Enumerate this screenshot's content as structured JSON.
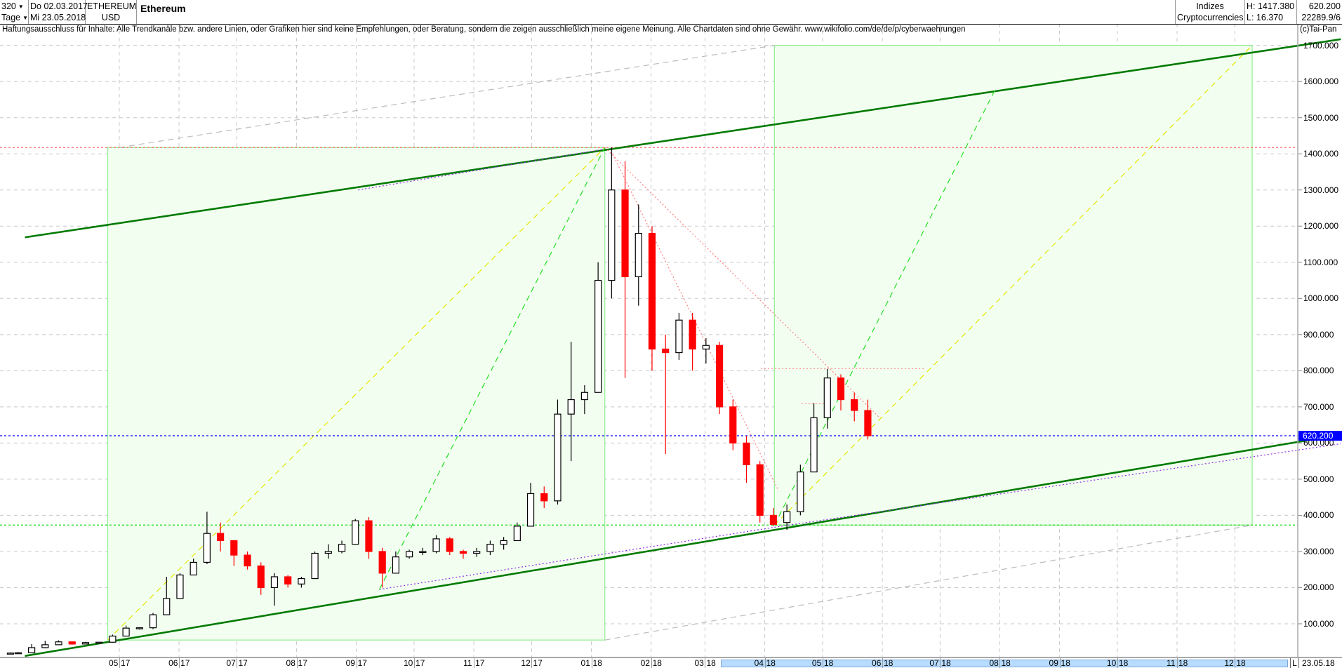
{
  "header": {
    "period": "320",
    "unit": "Tage",
    "date_from": "Do 02.03.2017",
    "date_to": "Mi 23.05.2018",
    "symbol": "ETHEREUM",
    "currency": "USD",
    "title": "Ethereum",
    "group": "Indizes",
    "subgroup": "Cryptocurrencies",
    "high": "H: 1417.380",
    "low": "L: 16.370",
    "last": "620.200",
    "extra": "22289.9/6"
  },
  "disclaimer": "Haftungsausschluss für Inhalte: Alle Trendkanäle bzw. andere Linien, oder Grafiken hier sind keine Empfehlungen, oder Beratung, sondern die zeigen ausschließlich meine eigene Meinung. Alle Chartdaten sind ohne Gewähr.  www.wikifolio.com/de/de/p/cyberwaehrungen",
  "copyright": "(c)Tai-Pan",
  "date_axis": {
    "mode_label": "L",
    "last_date": "23.05.18"
  },
  "colors": {
    "up": "#ffffff",
    "down": "#ff0000",
    "channel": "#007a00",
    "box_fill": "#f2fff0",
    "box_edge": "#90ee90",
    "current": "#0000ff"
  },
  "chart_data": {
    "type": "candlestick",
    "interval": "weekly (approximated from daily chart)",
    "ylim": [
      0,
      1750
    ],
    "y_ticks": [
      "100.000",
      "200.000",
      "300.000",
      "400.000",
      "500.000",
      "600.000",
      "700.000",
      "800.000",
      "900.000",
      "1000.000",
      "1100.000",
      "1200.000",
      "1300.000",
      "1400.000",
      "1500.000",
      "1600.000",
      "1700.000"
    ],
    "y_tick_values": [
      100,
      200,
      300,
      400,
      500,
      600,
      700,
      800,
      900,
      1000,
      1100,
      1200,
      1300,
      1400,
      1500,
      1600,
      1700
    ],
    "x_ticks": [
      {
        "date": "2017-05-01",
        "m": "05",
        "y": "17"
      },
      {
        "date": "2017-06-01",
        "m": "06",
        "y": "17"
      },
      {
        "date": "2017-07-01",
        "m": "07",
        "y": "17"
      },
      {
        "date": "2017-08-01",
        "m": "08",
        "y": "17"
      },
      {
        "date": "2017-09-01",
        "m": "09",
        "y": "17"
      },
      {
        "date": "2017-10-01",
        "m": "10",
        "y": "17"
      },
      {
        "date": "2017-11-01",
        "m": "11",
        "y": "17"
      },
      {
        "date": "2017-12-01",
        "m": "12",
        "y": "17"
      },
      {
        "date": "2018-01-01",
        "m": "01",
        "y": "18"
      },
      {
        "date": "2018-02-01",
        "m": "02",
        "y": "18"
      },
      {
        "date": "2018-03-01",
        "m": "03",
        "y": "18"
      },
      {
        "date": "2018-04-01",
        "m": "04",
        "y": "18"
      },
      {
        "date": "2018-05-01",
        "m": "05",
        "y": "18"
      },
      {
        "date": "2018-06-01",
        "m": "06",
        "y": "18"
      },
      {
        "date": "2018-07-01",
        "m": "07",
        "y": "18"
      },
      {
        "date": "2018-08-01",
        "m": "08",
        "y": "18"
      },
      {
        "date": "2018-09-01",
        "m": "09",
        "y": "18"
      },
      {
        "date": "2018-10-01",
        "m": "10",
        "y": "18"
      },
      {
        "date": "2018-11-01",
        "m": "11",
        "y": "18"
      },
      {
        "date": "2018-12-01",
        "m": "12",
        "y": "18"
      }
    ],
    "current_value": 620.2,
    "current_label": "620.200",
    "candles": [
      [
        "2017-03-02",
        19,
        21,
        17,
        19
      ],
      [
        "2017-03-06",
        19,
        22,
        18,
        20
      ],
      [
        "2017-03-13",
        20,
        44,
        20,
        34
      ],
      [
        "2017-03-20",
        34,
        53,
        32,
        42
      ],
      [
        "2017-03-27",
        42,
        54,
        42,
        50
      ],
      [
        "2017-04-03",
        50,
        51,
        42,
        44
      ],
      [
        "2017-04-10",
        44,
        50,
        44,
        48
      ],
      [
        "2017-04-17",
        48,
        50,
        46,
        49
      ],
      [
        "2017-04-24",
        49,
        70,
        48,
        66
      ],
      [
        "2017-05-01",
        66,
        95,
        66,
        88
      ],
      [
        "2017-05-08",
        88,
        90,
        84,
        89
      ],
      [
        "2017-05-15",
        89,
        130,
        85,
        125
      ],
      [
        "2017-05-22",
        125,
        230,
        125,
        170
      ],
      [
        "2017-05-29",
        170,
        240,
        170,
        235
      ],
      [
        "2017-06-05",
        235,
        280,
        235,
        270
      ],
      [
        "2017-06-12",
        270,
        410,
        265,
        350
      ],
      [
        "2017-06-19",
        350,
        380,
        300,
        330
      ],
      [
        "2017-06-26",
        330,
        330,
        260,
        290
      ],
      [
        "2017-07-03",
        290,
        300,
        250,
        260
      ],
      [
        "2017-07-10",
        260,
        270,
        180,
        200
      ],
      [
        "2017-07-17",
        200,
        240,
        150,
        230
      ],
      [
        "2017-07-24",
        230,
        235,
        200,
        210
      ],
      [
        "2017-07-31",
        210,
        230,
        200,
        225
      ],
      [
        "2017-08-07",
        225,
        300,
        225,
        295
      ],
      [
        "2017-08-14",
        295,
        320,
        280,
        300
      ],
      [
        "2017-08-21",
        300,
        330,
        295,
        320
      ],
      [
        "2017-08-28",
        320,
        390,
        320,
        385
      ],
      [
        "2017-09-04",
        385,
        395,
        280,
        300
      ],
      [
        "2017-09-11",
        300,
        310,
        200,
        240
      ],
      [
        "2017-09-18",
        240,
        300,
        240,
        285
      ],
      [
        "2017-09-25",
        285,
        305,
        280,
        300
      ],
      [
        "2017-10-02",
        300,
        310,
        290,
        300
      ],
      [
        "2017-10-09",
        300,
        345,
        295,
        335
      ],
      [
        "2017-10-16",
        335,
        340,
        290,
        300
      ],
      [
        "2017-10-23",
        300,
        305,
        280,
        295
      ],
      [
        "2017-10-30",
        295,
        310,
        285,
        300
      ],
      [
        "2017-11-06",
        300,
        330,
        290,
        320
      ],
      [
        "2017-11-13",
        320,
        340,
        305,
        330
      ],
      [
        "2017-11-20",
        330,
        380,
        330,
        370
      ],
      [
        "2017-11-27",
        370,
        490,
        370,
        460
      ],
      [
        "2017-12-04",
        460,
        480,
        420,
        440
      ],
      [
        "2017-12-11",
        440,
        720,
        430,
        680
      ],
      [
        "2017-12-18",
        680,
        880,
        550,
        720
      ],
      [
        "2017-12-25",
        720,
        760,
        680,
        740
      ],
      [
        "2018-01-01",
        740,
        1100,
        740,
        1050
      ],
      [
        "2018-01-08",
        1050,
        1417.38,
        1000,
        1300
      ],
      [
        "2018-01-15",
        1300,
        1380,
        780,
        1060
      ],
      [
        "2018-01-22",
        1060,
        1260,
        980,
        1180
      ],
      [
        "2018-01-29",
        1180,
        1200,
        800,
        860
      ],
      [
        "2018-02-05",
        860,
        900,
        570,
        850
      ],
      [
        "2018-02-12",
        850,
        960,
        830,
        940
      ],
      [
        "2018-02-19",
        940,
        960,
        800,
        860
      ],
      [
        "2018-02-26",
        860,
        890,
        820,
        870
      ],
      [
        "2018-03-05",
        870,
        880,
        680,
        700
      ],
      [
        "2018-03-12",
        700,
        720,
        580,
        600
      ],
      [
        "2018-03-19",
        600,
        620,
        490,
        540
      ],
      [
        "2018-03-26",
        540,
        550,
        380,
        400
      ],
      [
        "2018-04-02",
        400,
        420,
        370,
        375
      ],
      [
        "2018-04-09",
        380,
        430,
        360,
        410
      ],
      [
        "2018-04-16",
        410,
        540,
        400,
        520
      ],
      [
        "2018-04-23",
        520,
        710,
        520,
        670
      ],
      [
        "2018-04-30",
        670,
        805,
        640,
        780
      ],
      [
        "2018-05-07",
        780,
        790,
        690,
        720
      ],
      [
        "2018-05-14",
        720,
        740,
        660,
        690
      ],
      [
        "2018-05-21",
        690,
        720,
        610,
        620.2
      ]
    ],
    "boxes": [
      {
        "from": "2017-04-25",
        "to": "2018-01-08",
        "low": 55,
        "high": 1417.38
      },
      {
        "from": "2018-04-06",
        "to": "2018-12-10",
        "low": 373,
        "high": 1700
      }
    ],
    "hlines": [
      {
        "price": 1417.38,
        "color": "#ff7070",
        "style": "dotted"
      },
      {
        "price": 373,
        "color": "#22dd22",
        "style": "dotted"
      },
      {
        "price": 620.2,
        "color": "#0000ff",
        "style": "dotted"
      }
    ],
    "trendlines": [
      {
        "name": "upper-channel",
        "p1": [
          "2017-03-13",
          1169
        ],
        "p2": [
          "2019-01-25",
          1717
        ],
        "color": "#007a00",
        "style": "solid"
      },
      {
        "name": "lower-channel",
        "p1": [
          "2017-03-13",
          11
        ],
        "p2": [
          "2019-01-25",
          623
        ],
        "color": "#007a00",
        "style": "solid"
      },
      {
        "name": "purple-upper",
        "p1": [
          "2017-09-02",
          1300
        ],
        "p2": [
          "2018-01-08",
          1413
        ],
        "color": "#8a2be2",
        "style": "dotted"
      },
      {
        "name": "purple-lower-1",
        "p1": [
          "2017-09-13",
          195
        ],
        "p2": [
          "2018-04-06",
          367
        ],
        "color": "#8a2be2",
        "style": "dotted"
      },
      {
        "name": "purple-lower-2",
        "p1": [
          "2018-04-06",
          367
        ],
        "p2": [
          "2019-01-25",
          598
        ],
        "color": "#8a2be2",
        "style": "dotted"
      },
      {
        "name": "grey-top",
        "p1": [
          "2017-05-01",
          1417.38
        ],
        "p2": [
          "2018-04-06",
          1700
        ],
        "color": "#bbbbbb",
        "style": "dashed"
      },
      {
        "name": "grey-bottom",
        "p1": [
          "2018-01-08",
          55
        ],
        "p2": [
          "2018-12-10",
          373
        ],
        "color": "#bbbbbb",
        "style": "dashed"
      },
      {
        "name": "yellow-1",
        "p1": [
          "2017-04-25",
          55
        ],
        "p2": [
          "2018-01-08",
          1417.38
        ],
        "color": "#e6e600",
        "style": "dashed"
      },
      {
        "name": "yellow-2",
        "p1": [
          "2018-04-06",
          373
        ],
        "p2": [
          "2018-12-10",
          1700
        ],
        "color": "#e6e600",
        "style": "dashed"
      },
      {
        "name": "green-1",
        "p1": [
          "2017-09-13",
          195
        ],
        "p2": [
          "2018-01-08",
          1417.38
        ],
        "color": "#22dd22",
        "style": "dashed"
      },
      {
        "name": "green-2",
        "p1": [
          "2018-04-06",
          373
        ],
        "p2": [
          "2018-07-30",
          1582
        ],
        "color": "#22dd22",
        "style": "dashed"
      },
      {
        "name": "red-1",
        "p1": [
          "2018-01-08",
          1417.38
        ],
        "p2": [
          "2018-05-31",
          668
        ],
        "color": "#ff8080",
        "style": "dotted"
      },
      {
        "name": "red-2",
        "p1": [
          "2018-01-12",
          1400
        ],
        "p2": [
          "2018-04-08",
          470
        ],
        "color": "#ff8080",
        "style": "dotted"
      },
      {
        "name": "pink-806",
        "p1": [
          "2018-03-30",
          806
        ],
        "p2": [
          "2018-06-23",
          806
        ],
        "color": "#ff9090",
        "style": "dotted"
      },
      {
        "name": "pink-709",
        "p1": [
          "2018-04-20",
          709
        ],
        "p2": [
          "2018-05-04",
          709
        ],
        "color": "#ff9090",
        "style": "dotted"
      }
    ]
  }
}
